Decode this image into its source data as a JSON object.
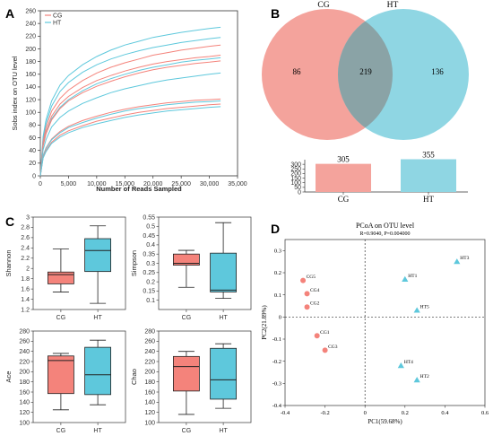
{
  "colors": {
    "cg": "#f4837b",
    "ht": "#5ec8dc",
    "cg_venn": "#f4a39c",
    "ht_venn": "#8fd6e3",
    "overlap": "#8aa3a6"
  },
  "panels": {
    "a": "A",
    "b": "B",
    "c": "C",
    "d": "D"
  },
  "chart_data": [
    {
      "panel": "A",
      "type": "line",
      "xlabel": "Number of Reads Sampled",
      "ylabel": "Sobs index on OTU level",
      "xlim": [
        0,
        35000
      ],
      "ylim": [
        0,
        260
      ],
      "xticks": [
        "0",
        "5,000",
        "10,000",
        "15,000",
        "20,000",
        "25,000",
        "30,000",
        "35,000"
      ],
      "yticks": [
        "0",
        "20",
        "40",
        "60",
        "80",
        "100",
        "120",
        "140",
        "160",
        "180",
        "200",
        "220",
        "240",
        "260"
      ],
      "legend": [
        "CG",
        "HT"
      ],
      "legend_position": "top-left",
      "x": [
        0,
        500,
        1000,
        2000,
        3500,
        5000,
        7500,
        10000,
        12500,
        15000,
        17500,
        20000,
        22500,
        25000,
        27500,
        30000,
        32000
      ],
      "series": [
        {
          "name": "HT",
          "group": "ht",
          "values": [
            0,
            62,
            88,
            118,
            143,
            158,
            175,
            188,
            198,
            206,
            212,
            218,
            222,
            226,
            229,
            232,
            234
          ]
        },
        {
          "name": "HT",
          "group": "ht",
          "values": [
            0,
            58,
            82,
            110,
            133,
            147,
            163,
            175,
            184,
            191,
            197,
            202,
            206,
            210,
            213,
            216,
            218
          ]
        },
        {
          "name": "CG",
          "group": "cg",
          "values": [
            0,
            54,
            76,
            102,
            122,
            135,
            150,
            162,
            171,
            178,
            184,
            190,
            194,
            198,
            201,
            204,
            206
          ]
        },
        {
          "name": "CG",
          "group": "cg",
          "values": [
            0,
            50,
            70,
            94,
            113,
            125,
            139,
            150,
            158,
            165,
            171,
            176,
            180,
            183,
            186,
            188,
            190
          ]
        },
        {
          "name": "HT",
          "group": "ht",
          "values": [
            0,
            48,
            67,
            90,
            108,
            120,
            134,
            145,
            153,
            160,
            166,
            171,
            175,
            179,
            182,
            184,
            186
          ]
        },
        {
          "name": "CG",
          "group": "cg",
          "values": [
            0,
            47,
            66,
            88,
            106,
            118,
            131,
            141,
            149,
            156,
            162,
            167,
            171,
            174,
            177,
            179,
            181
          ]
        },
        {
          "name": "HT",
          "group": "ht",
          "values": [
            0,
            41,
            57,
            77,
            92,
            102,
            114,
            123,
            131,
            137,
            142,
            147,
            151,
            154,
            157,
            160,
            162
          ]
        },
        {
          "name": "CG",
          "group": "cg",
          "values": [
            0,
            32,
            44,
            58,
            70,
            78,
            87,
            94,
            100,
            105,
            109,
            112,
            115,
            117,
            119,
            120,
            121
          ]
        },
        {
          "name": "HT",
          "group": "ht",
          "values": [
            0,
            31,
            43,
            57,
            68,
            76,
            84,
            91,
            97,
            102,
            106,
            109,
            112,
            114,
            116,
            117,
            118
          ]
        },
        {
          "name": "CG",
          "group": "cg",
          "values": [
            0,
            29,
            40,
            53,
            64,
            71,
            79,
            86,
            91,
            96,
            100,
            103,
            106,
            108,
            110,
            112,
            113
          ]
        },
        {
          "name": "HT",
          "group": "ht",
          "values": [
            0,
            28,
            38,
            51,
            61,
            68,
            76,
            82,
            87,
            92,
            96,
            99,
            102,
            104,
            106,
            108,
            109
          ]
        }
      ]
    },
    {
      "panel": "B",
      "type": "venn",
      "sets": [
        "CG",
        "HT"
      ],
      "only_cg": "86",
      "shared": "219",
      "only_ht": "136"
    },
    {
      "panel": "B",
      "type": "bar",
      "categories": [
        "CG",
        "HT"
      ],
      "values": [
        305,
        355
      ],
      "value_labels": [
        "305",
        "355"
      ],
      "ylim": [
        0,
        350
      ],
      "yticks": [
        "0",
        "50",
        "100",
        "150",
        "200",
        "250",
        "300"
      ]
    },
    {
      "panel": "C",
      "type": "box",
      "ylabel": "Shannon",
      "ylim": [
        1.2,
        3.0
      ],
      "yticks": [
        "1.2",
        "1.4",
        "1.6",
        "1.8",
        "2",
        "2.2",
        "2.4",
        "2.6",
        "2.8",
        "3"
      ],
      "categories": [
        "CG",
        "HT"
      ],
      "boxes": [
        {
          "min": 1.54,
          "q1": 1.7,
          "median": 1.88,
          "q3": 1.93,
          "max": 2.38
        },
        {
          "min": 1.32,
          "q1": 1.94,
          "median": 2.35,
          "q3": 2.58,
          "max": 2.83
        }
      ]
    },
    {
      "panel": "C",
      "type": "box",
      "ylabel": "Simpson",
      "ylim": [
        0.05,
        0.55
      ],
      "yticks": [
        "0.1",
        "0.15",
        "0.2",
        "0.25",
        "0.3",
        "0.35",
        "0.4",
        "0.45",
        "0.5",
        "0.55"
      ],
      "categories": [
        "CG",
        "HT"
      ],
      "boxes": [
        {
          "min": 0.17,
          "q1": 0.29,
          "median": 0.3,
          "q3": 0.35,
          "max": 0.37
        },
        {
          "min": 0.11,
          "q1": 0.145,
          "median": 0.155,
          "q3": 0.355,
          "max": 0.52
        }
      ]
    },
    {
      "panel": "C",
      "type": "box",
      "ylabel": "Ace",
      "ylim": [
        100,
        280
      ],
      "yticks": [
        "100",
        "120",
        "140",
        "160",
        "180",
        "200",
        "220",
        "240",
        "260",
        "280"
      ],
      "categories": [
        "CG",
        "HT"
      ],
      "boxes": [
        {
          "min": 125,
          "q1": 157,
          "median": 222,
          "q3": 231,
          "max": 236
        },
        {
          "min": 135,
          "q1": 155,
          "median": 194,
          "q3": 248,
          "max": 262
        }
      ]
    },
    {
      "panel": "C",
      "type": "box",
      "ylabel": "Chao",
      "ylim": [
        100,
        280
      ],
      "yticks": [
        "100",
        "120",
        "140",
        "160",
        "180",
        "200",
        "220",
        "240",
        "260",
        "280"
      ],
      "categories": [
        "CG",
        "HT"
      ],
      "boxes": [
        {
          "min": 116,
          "q1": 162,
          "median": 210,
          "q3": 230,
          "max": 240
        },
        {
          "min": 128,
          "q1": 146,
          "median": 184,
          "q3": 246,
          "max": 255
        }
      ]
    },
    {
      "panel": "D",
      "type": "scatter",
      "title": "PCoA on OTU level",
      "subtitle": "R=0.9040, P=0.004000",
      "xlabel": "PC1(59.68%)",
      "ylabel": "PC2(21.89%)",
      "xlim": [
        -0.4,
        0.6
      ],
      "ylim": [
        -0.4,
        0.35
      ],
      "xticks": [
        "-0.4",
        "-0.2",
        "0",
        "0.2",
        "0.4",
        "0.6"
      ],
      "yticks": [
        "-0.4",
        "-0.3",
        "-0.2",
        "-0.1",
        "0",
        "0.1",
        "0.2",
        "0.3"
      ],
      "points": [
        {
          "label": "CG5",
          "group": "cg",
          "x": -0.31,
          "y": 0.165
        },
        {
          "label": "CG4",
          "group": "cg",
          "x": -0.29,
          "y": 0.105
        },
        {
          "label": "CG2",
          "group": "cg",
          "x": -0.29,
          "y": 0.045
        },
        {
          "label": "CG1",
          "group": "cg",
          "x": -0.24,
          "y": -0.085
        },
        {
          "label": "CG3",
          "group": "cg",
          "x": -0.2,
          "y": -0.15
        },
        {
          "label": "HT1",
          "group": "ht",
          "x": 0.2,
          "y": 0.17
        },
        {
          "label": "HT5",
          "group": "ht",
          "x": 0.26,
          "y": 0.03
        },
        {
          "label": "HT3",
          "group": "ht",
          "x": 0.46,
          "y": 0.25
        },
        {
          "label": "HT4",
          "group": "ht",
          "x": 0.18,
          "y": -0.22
        },
        {
          "label": "HT2",
          "group": "ht",
          "x": 0.26,
          "y": -0.285
        }
      ]
    }
  ]
}
